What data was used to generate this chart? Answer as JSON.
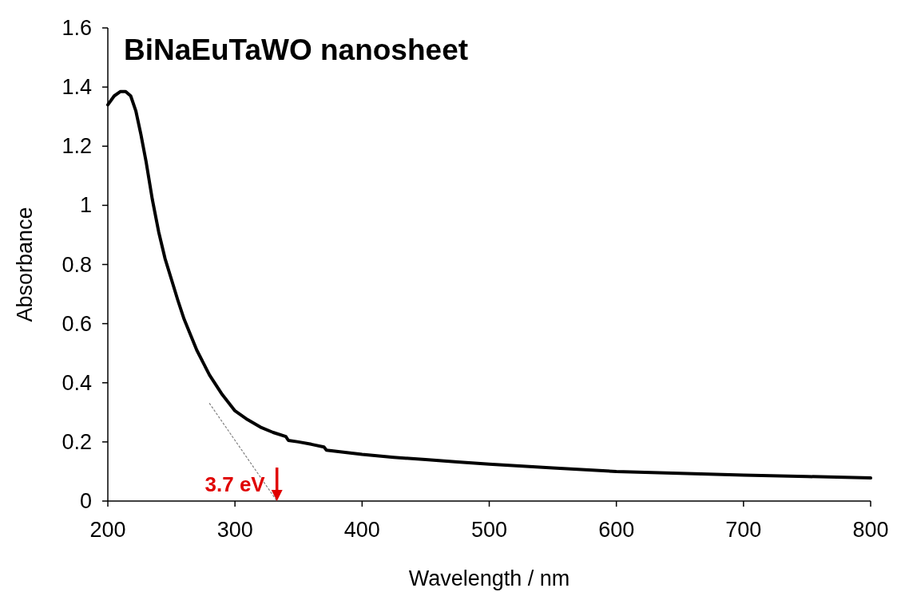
{
  "chart_data": {
    "type": "line",
    "title": "BiNaEuTaWO nanosheet",
    "xlabel": "Wavelength / nm",
    "ylabel": "Absorbance",
    "xlim": [
      200,
      800
    ],
    "xticks": [
      200,
      300,
      400,
      500,
      600,
      700,
      800
    ],
    "ylim": [
      0,
      1.6
    ],
    "yticks": [
      0,
      0.2,
      0.4,
      0.6,
      0.8,
      1,
      1.2,
      1.4,
      1.6
    ],
    "grid": false,
    "marker": "none",
    "series": [
      {
        "color": "#000000",
        "line_style": "solid",
        "x": [
          200,
          205,
          210,
          214,
          218,
          222,
          226,
          230,
          235,
          240,
          245,
          250,
          255,
          260,
          270,
          280,
          290,
          300,
          310,
          320,
          330,
          340,
          342,
          350,
          360,
          370,
          372,
          380,
          400,
          425,
          450,
          475,
          500,
          550,
          600,
          650,
          700,
          750,
          800
        ],
        "values": [
          1.34,
          1.37,
          1.385,
          1.385,
          1.37,
          1.32,
          1.24,
          1.15,
          1.02,
          0.91,
          0.82,
          0.75,
          0.68,
          0.615,
          0.51,
          0.426,
          0.36,
          0.305,
          0.275,
          0.25,
          0.232,
          0.218,
          0.205,
          0.2,
          0.192,
          0.183,
          0.172,
          0.168,
          0.158,
          0.148,
          0.14,
          0.132,
          0.125,
          0.112,
          0.1,
          0.094,
          0.088,
          0.083,
          0.078
        ]
      },
      {
        "color": "#808080",
        "line_style": "dotted",
        "x": [
          280,
          333
        ],
        "values": [
          0.33,
          0
        ]
      }
    ],
    "annotations": [
      {
        "text": "3.7 eV",
        "x": 333,
        "y": 0
      }
    ]
  }
}
